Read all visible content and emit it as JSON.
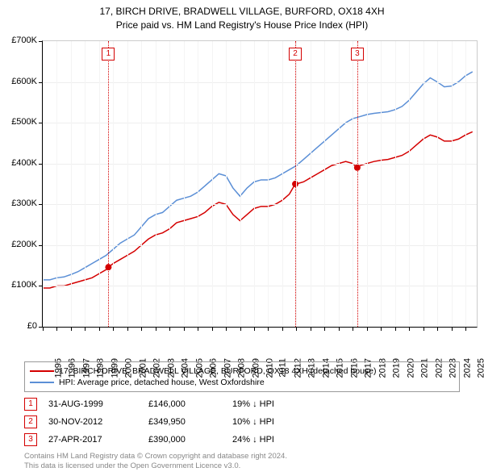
{
  "title_line1": "17, BIRCH DRIVE, BRADWELL VILLAGE, BURFORD, OX18 4XH",
  "title_line2": "Price paid vs. HM Land Registry's House Price Index (HPI)",
  "title_fontsize": 12,
  "chart": {
    "type": "line",
    "background_color": "#ffffff",
    "grid_color": "#eeeeee",
    "x_minor_grid_color": "#f4f4f4",
    "axis_line_color": "#000000",
    "plot_border_color": "#cccccc",
    "ylabel_prefix": "£",
    "ylabel_suffix": "K",
    "ylim": [
      0,
      700000
    ],
    "ytick_step": 100000,
    "yticks": [
      0,
      100000,
      200000,
      300000,
      400000,
      500000,
      600000,
      700000
    ],
    "xlim": [
      1995,
      2025.8
    ],
    "xticks": [
      1995,
      1996,
      1997,
      1998,
      1999,
      2000,
      2001,
      2002,
      2003,
      2004,
      2005,
      2006,
      2007,
      2008,
      2009,
      2010,
      2011,
      2012,
      2013,
      2014,
      2015,
      2016,
      2017,
      2018,
      2019,
      2020,
      2021,
      2022,
      2023,
      2024,
      2025
    ],
    "label_fontsize": 11,
    "line_width": 1.5,
    "marker_size": 8,
    "series": [
      {
        "name": "price_paid",
        "label": "17, BIRCH DRIVE, BRADWELL VILLAGE, BURFORD, OX18 4XH (detached house)",
        "color": "#d40000",
        "points": [
          [
            1995.0,
            95000
          ],
          [
            1995.5,
            95000
          ],
          [
            1996.0,
            100000
          ],
          [
            1996.5,
            100000
          ],
          [
            1997.0,
            105000
          ],
          [
            1997.5,
            110000
          ],
          [
            1998.0,
            115000
          ],
          [
            1998.5,
            120000
          ],
          [
            1999.0,
            130000
          ],
          [
            1999.5,
            140000
          ],
          [
            1999.66,
            146000
          ],
          [
            2000.0,
            155000
          ],
          [
            2000.5,
            165000
          ],
          [
            2001.0,
            175000
          ],
          [
            2001.5,
            185000
          ],
          [
            2002.0,
            200000
          ],
          [
            2002.5,
            215000
          ],
          [
            2003.0,
            225000
          ],
          [
            2003.5,
            230000
          ],
          [
            2004.0,
            240000
          ],
          [
            2004.5,
            255000
          ],
          [
            2005.0,
            260000
          ],
          [
            2005.5,
            265000
          ],
          [
            2006.0,
            270000
          ],
          [
            2006.5,
            280000
          ],
          [
            2007.0,
            295000
          ],
          [
            2007.5,
            305000
          ],
          [
            2008.0,
            300000
          ],
          [
            2008.5,
            275000
          ],
          [
            2009.0,
            260000
          ],
          [
            2009.5,
            275000
          ],
          [
            2010.0,
            290000
          ],
          [
            2010.5,
            295000
          ],
          [
            2011.0,
            295000
          ],
          [
            2011.5,
            300000
          ],
          [
            2012.0,
            310000
          ],
          [
            2012.5,
            325000
          ],
          [
            2012.92,
            349950
          ],
          [
            2013.0,
            350000
          ],
          [
            2013.5,
            355000
          ],
          [
            2014.0,
            365000
          ],
          [
            2014.5,
            375000
          ],
          [
            2015.0,
            385000
          ],
          [
            2015.5,
            395000
          ],
          [
            2016.0,
            400000
          ],
          [
            2016.5,
            405000
          ],
          [
            2017.0,
            400000
          ],
          [
            2017.32,
            390000
          ],
          [
            2017.5,
            395000
          ],
          [
            2018.0,
            400000
          ],
          [
            2018.5,
            405000
          ],
          [
            2019.0,
            408000
          ],
          [
            2019.5,
            410000
          ],
          [
            2020.0,
            415000
          ],
          [
            2020.5,
            420000
          ],
          [
            2021.0,
            430000
          ],
          [
            2021.5,
            445000
          ],
          [
            2022.0,
            460000
          ],
          [
            2022.5,
            470000
          ],
          [
            2023.0,
            465000
          ],
          [
            2023.5,
            455000
          ],
          [
            2024.0,
            455000
          ],
          [
            2024.5,
            460000
          ],
          [
            2025.0,
            470000
          ],
          [
            2025.5,
            478000
          ]
        ],
        "markers_at": [
          [
            1999.66,
            146000
          ],
          [
            2012.92,
            349950
          ],
          [
            2017.32,
            390000
          ]
        ]
      },
      {
        "name": "hpi",
        "label": "HPI: Average price, detached house, West Oxfordshire",
        "color": "#5b8fd6",
        "points": [
          [
            1995.0,
            115000
          ],
          [
            1995.5,
            115000
          ],
          [
            1996.0,
            120000
          ],
          [
            1996.5,
            122000
          ],
          [
            1997.0,
            128000
          ],
          [
            1997.5,
            135000
          ],
          [
            1998.0,
            145000
          ],
          [
            1998.5,
            155000
          ],
          [
            1999.0,
            165000
          ],
          [
            1999.5,
            175000
          ],
          [
            2000.0,
            190000
          ],
          [
            2000.5,
            205000
          ],
          [
            2001.0,
            215000
          ],
          [
            2001.5,
            225000
          ],
          [
            2002.0,
            245000
          ],
          [
            2002.5,
            265000
          ],
          [
            2003.0,
            275000
          ],
          [
            2003.5,
            280000
          ],
          [
            2004.0,
            295000
          ],
          [
            2004.5,
            310000
          ],
          [
            2005.0,
            315000
          ],
          [
            2005.5,
            320000
          ],
          [
            2006.0,
            330000
          ],
          [
            2006.5,
            345000
          ],
          [
            2007.0,
            360000
          ],
          [
            2007.5,
            375000
          ],
          [
            2008.0,
            370000
          ],
          [
            2008.5,
            340000
          ],
          [
            2009.0,
            320000
          ],
          [
            2009.5,
            340000
          ],
          [
            2010.0,
            355000
          ],
          [
            2010.5,
            360000
          ],
          [
            2011.0,
            360000
          ],
          [
            2011.5,
            365000
          ],
          [
            2012.0,
            375000
          ],
          [
            2012.5,
            385000
          ],
          [
            2013.0,
            395000
          ],
          [
            2013.5,
            410000
          ],
          [
            2014.0,
            425000
          ],
          [
            2014.5,
            440000
          ],
          [
            2015.0,
            455000
          ],
          [
            2015.5,
            470000
          ],
          [
            2016.0,
            485000
          ],
          [
            2016.5,
            500000
          ],
          [
            2017.0,
            510000
          ],
          [
            2017.5,
            515000
          ],
          [
            2018.0,
            520000
          ],
          [
            2018.5,
            523000
          ],
          [
            2019.0,
            525000
          ],
          [
            2019.5,
            527000
          ],
          [
            2020.0,
            532000
          ],
          [
            2020.5,
            540000
          ],
          [
            2021.0,
            555000
          ],
          [
            2021.5,
            575000
          ],
          [
            2022.0,
            595000
          ],
          [
            2022.5,
            610000
          ],
          [
            2023.0,
            600000
          ],
          [
            2023.5,
            588000
          ],
          [
            2024.0,
            590000
          ],
          [
            2024.5,
            600000
          ],
          [
            2025.0,
            615000
          ],
          [
            2025.5,
            625000
          ]
        ]
      }
    ],
    "events": [
      {
        "n": "1",
        "date_frac": 1999.66,
        "color": "#d40000",
        "date": "31-AUG-1999",
        "price": "£146,000",
        "delta": "19% ↓ HPI"
      },
      {
        "n": "2",
        "date_frac": 2012.92,
        "color": "#d40000",
        "date": "30-NOV-2012",
        "price": "£349,950",
        "delta": "10% ↓ HPI"
      },
      {
        "n": "3",
        "date_frac": 2017.32,
        "color": "#d40000",
        "date": "27-APR-2017",
        "price": "£390,000",
        "delta": "24% ↓ HPI"
      }
    ]
  },
  "legend_header": "",
  "attribution_line1": "Contains HM Land Registry data © Crown copyright and database right 2024.",
  "attribution_line2": "This data is licensed under the Open Government Licence v3.0."
}
